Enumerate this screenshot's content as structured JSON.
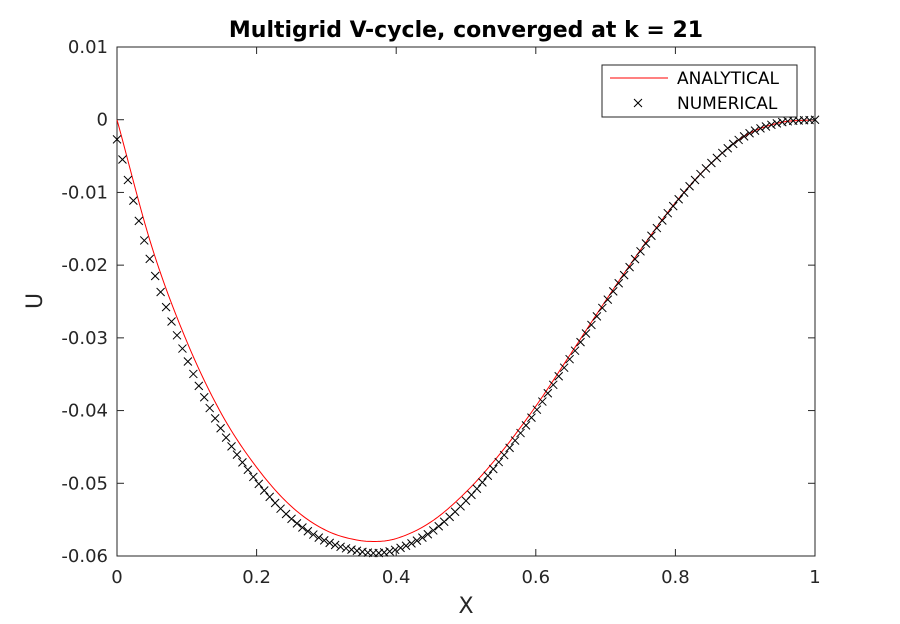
{
  "chart_data": {
    "type": "line",
    "title": "Multigrid V-cycle, converged at k = 21",
    "xlabel": "X",
    "ylabel": "U",
    "xlim": [
      0,
      1
    ],
    "ylim": [
      -0.06,
      0.01
    ],
    "xticks": [
      0,
      0.2,
      0.4,
      0.6,
      0.8,
      1
    ],
    "xtick_labels": [
      "0",
      "0.2",
      "0.4",
      "0.6",
      "0.8",
      "1"
    ],
    "yticks": [
      0.01,
      0,
      -0.01,
      -0.02,
      -0.03,
      -0.04,
      -0.05,
      -0.06
    ],
    "ytick_labels": [
      "0.01",
      "0",
      "-0.01",
      "-0.02",
      "-0.03",
      "-0.04",
      "-0.05",
      "-0.06"
    ],
    "grid": false,
    "legend_position": "top-right",
    "series": [
      {
        "name": "ANALYTICAL",
        "style": "line",
        "color": "#ff0000",
        "x": [
          0,
          0.05,
          0.1,
          0.15,
          0.2,
          0.25,
          0.3,
          0.35,
          0.37,
          0.4,
          0.45,
          0.5,
          0.55,
          0.6,
          0.65,
          0.7,
          0.75,
          0.8,
          0.85,
          0.9,
          0.95,
          1
        ],
        "y": [
          0,
          -0.0175,
          -0.0305,
          -0.0405,
          -0.0478,
          -0.0532,
          -0.0565,
          -0.0579,
          -0.058,
          -0.0576,
          -0.0553,
          -0.0512,
          -0.0458,
          -0.0394,
          -0.0322,
          -0.0249,
          -0.0179,
          -0.0114,
          -0.0061,
          -0.0022,
          -0.0004,
          0
        ]
      },
      {
        "name": "NUMERICAL",
        "style": "marker-x",
        "color": "#000000",
        "x": [
          0,
          0.05,
          0.1,
          0.15,
          0.2,
          0.25,
          0.3,
          0.35,
          0.37,
          0.4,
          0.45,
          0.5,
          0.55,
          0.6,
          0.65,
          0.7,
          0.75,
          0.8,
          0.85,
          0.9,
          0.95,
          1
        ],
        "y": [
          -0.0027,
          -0.0201,
          -0.0329,
          -0.0427,
          -0.0497,
          -0.0549,
          -0.058,
          -0.0594,
          -0.0596,
          -0.0591,
          -0.0567,
          -0.0524,
          -0.0467,
          -0.0401,
          -0.0327,
          -0.0252,
          -0.0181,
          -0.0115,
          -0.0061,
          -0.0022,
          -0.0004,
          0
        ],
        "n_points": 129
      }
    ]
  }
}
